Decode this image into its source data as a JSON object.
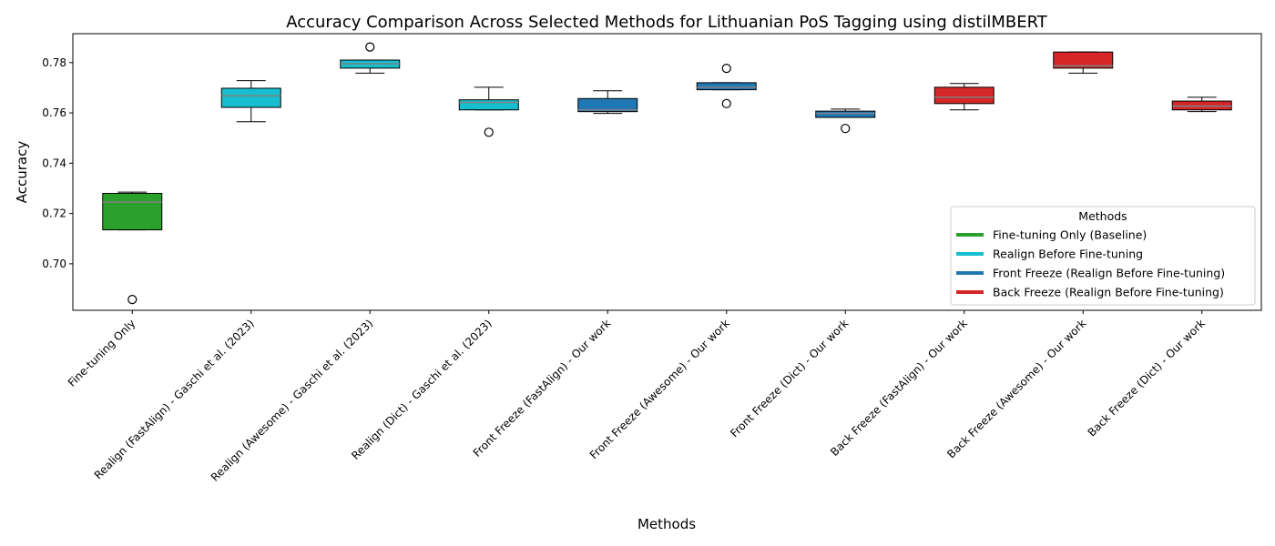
{
  "chart_data": {
    "type": "box",
    "title": "Accuracy Comparison Across Selected Methods for Lithuanian PoS Tagging using distilMBERT",
    "xlabel": "Methods",
    "ylabel": "Accuracy",
    "ylim": [
      0.6815,
      0.7915
    ],
    "yticks": [
      0.7,
      0.72,
      0.74,
      0.76,
      0.78
    ],
    "ytick_labels": [
      "0.70",
      "0.72",
      "0.74",
      "0.76",
      "0.78"
    ],
    "grid": false,
    "legend": {
      "title": "Methods",
      "placement": "lower-right",
      "entries": [
        {
          "label": "Fine-tuning Only (Baseline)",
          "color": "#2ca02c"
        },
        {
          "label": "Realign Before Fine-tuning",
          "color": "#17becf"
        },
        {
          "label": "Front Freeze (Realign Before Fine-tuning)",
          "color": "#1f77b4"
        },
        {
          "label": "Back Freeze (Realign Before Fine-tuning)",
          "color": "#d62728"
        }
      ]
    },
    "median_color": "#808080",
    "categories": [
      "Fine-tuning Only",
      "Realign (FastAlign) - Gaschi et al. (2023)",
      "Realign (Awesome) - Gaschi et al. (2023)",
      "Realign (Dict) - Gaschi et al. (2023)",
      "Front Freeze (FastAlign) - Our work",
      "Front Freeze (Awesome) - Our work",
      "Front Freeze (Dict) - Our work",
      "Back Freeze (FastAlign) - Our work",
      "Back Freeze (Awesome) - Our work",
      "Back Freeze (Dict) - Our work"
    ],
    "boxes": [
      {
        "color": "#2ca02c",
        "whislo": 0.7135,
        "q1": 0.7135,
        "med": 0.7245,
        "q3": 0.728,
        "whishi": 0.7285,
        "fliers": [
          0.6858
        ]
      },
      {
        "color": "#17becf",
        "whislo": 0.7565,
        "q1": 0.7622,
        "med": 0.7668,
        "q3": 0.7698,
        "whishi": 0.7728,
        "fliers": []
      },
      {
        "color": "#17becf",
        "whislo": 0.7758,
        "q1": 0.7778,
        "med": 0.7795,
        "q3": 0.781,
        "whishi": 0.781,
        "fliers": [
          0.7862
        ]
      },
      {
        "color": "#17becf",
        "whislo": 0.7612,
        "q1": 0.7612,
        "med": 0.7642,
        "q3": 0.7652,
        "whishi": 0.7702,
        "fliers": [
          0.7523
        ]
      },
      {
        "color": "#1f77b4",
        "whislo": 0.7598,
        "q1": 0.7605,
        "med": 0.7612,
        "q3": 0.7657,
        "whishi": 0.7688,
        "fliers": []
      },
      {
        "color": "#1f77b4",
        "whislo": 0.7692,
        "q1": 0.7692,
        "med": 0.7702,
        "q3": 0.772,
        "whishi": 0.772,
        "fliers": [
          0.7777,
          0.7637
        ]
      },
      {
        "color": "#1f77b4",
        "whislo": 0.7582,
        "q1": 0.7582,
        "med": 0.7598,
        "q3": 0.7607,
        "whishi": 0.7615,
        "fliers": [
          0.7538
        ]
      },
      {
        "color": "#d62728",
        "whislo": 0.7612,
        "q1": 0.7637,
        "med": 0.7662,
        "q3": 0.7702,
        "whishi": 0.7717,
        "fliers": []
      },
      {
        "color": "#d62728",
        "whislo": 0.7758,
        "q1": 0.7778,
        "med": 0.7787,
        "q3": 0.7842,
        "whishi": 0.7842,
        "fliers": []
      },
      {
        "color": "#d62728",
        "whislo": 0.7605,
        "q1": 0.7612,
        "med": 0.7627,
        "q3": 0.7647,
        "whishi": 0.7662,
        "fliers": []
      }
    ]
  }
}
